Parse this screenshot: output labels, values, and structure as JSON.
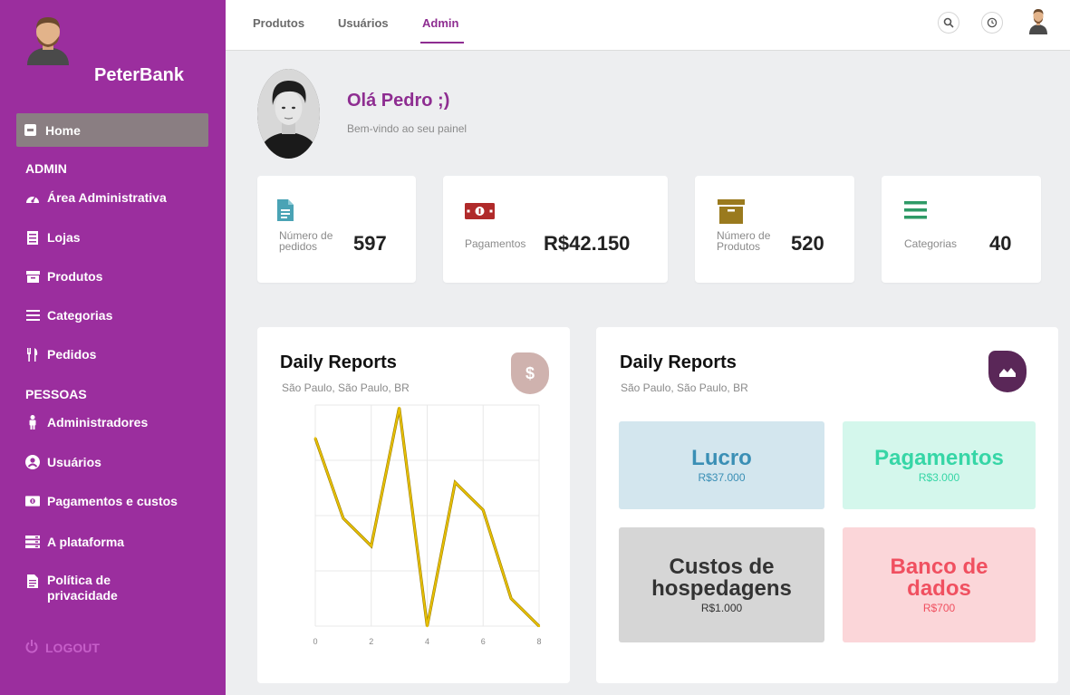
{
  "brand": {
    "name": "PeterBank"
  },
  "sidebar": {
    "home_label": "Home",
    "admin_section": "ADMIN",
    "people_section": "PESSOAS",
    "items": [
      {
        "label": "Área Administrativa",
        "icon": "dashboard-icon"
      },
      {
        "label": "Lojas",
        "icon": "store-icon"
      },
      {
        "label": "Produtos",
        "icon": "box-icon"
      },
      {
        "label": "Categorias",
        "icon": "list-icon"
      },
      {
        "label": "Pedidos",
        "icon": "utensils-icon"
      },
      {
        "label": "Administradores",
        "icon": "person-icon"
      },
      {
        "label": "Usuários",
        "icon": "user-circle-icon"
      },
      {
        "label": "Pagamentos e custos",
        "icon": "money-icon"
      },
      {
        "label": "A plataforma",
        "icon": "server-icon"
      },
      {
        "label": "Política de privacidade",
        "icon": "document-icon"
      }
    ],
    "logout_label": "LOGOUT"
  },
  "topbar": {
    "tabs": [
      {
        "label": "Produtos"
      },
      {
        "label": "Usuários"
      },
      {
        "label": "Admin",
        "active": true
      }
    ]
  },
  "welcome": {
    "greeting": "Olá Pedro ;)",
    "subtitle": "Bem-vindo ao seu painel"
  },
  "stats": [
    {
      "label_line1": "Número de",
      "label_line2": "pedidos",
      "value": "597",
      "icon": "file-icon",
      "color": "#4aa3b5"
    },
    {
      "label_line1": "Pagamentos",
      "label_line2": "",
      "value": "R$42.150",
      "icon": "money-icon",
      "color": "#b02a2a"
    },
    {
      "label_line1": "Número de",
      "label_line2": "Produtos",
      "value": "520",
      "icon": "archive-icon",
      "color": "#9a7a1e"
    },
    {
      "label_line1": "Categorias",
      "label_line2": "",
      "value": "40",
      "icon": "list-icon",
      "color": "#2e9a66"
    }
  ],
  "report_left": {
    "title": "Daily Reports",
    "subtitle": "São Paulo, São Paulo, BR",
    "badge_symbol": "$",
    "badge_color": "#cfb2ae"
  },
  "report_right": {
    "title": "Daily Reports",
    "subtitle": "São Paulo, São Paulo, BR",
    "badge_color": "#5a2758",
    "tiles": [
      {
        "title": "Lucro",
        "value": "R$37.000",
        "bg": "#d3e6ee",
        "fg": "#3a8fb5"
      },
      {
        "title": "Pagamentos",
        "value": "R$3.000",
        "bg": "#d4f7ec",
        "fg": "#36d6a6"
      },
      {
        "title": "Custos de hospedagens",
        "value": "R$1.000",
        "bg": "#d6d6d6",
        "fg": "#333333"
      },
      {
        "title": "Banco de dados",
        "value": "R$700",
        "bg": "#fbd6d9",
        "fg": "#f05060"
      }
    ]
  },
  "chart_data": {
    "type": "line",
    "x": [
      0,
      1,
      2,
      3,
      4,
      5,
      6,
      7,
      8
    ],
    "series": [
      {
        "values": [
          6.8,
          3.9,
          2.9,
          7.9,
          0,
          5.2,
          4.2,
          1.0,
          0
        ]
      }
    ],
    "xticks": [
      "0",
      "2",
      "4",
      "6",
      "8"
    ],
    "xlim": [
      0,
      8
    ],
    "ylim": [
      0,
      8
    ],
    "grid": true,
    "line_color": "#e8c000"
  }
}
